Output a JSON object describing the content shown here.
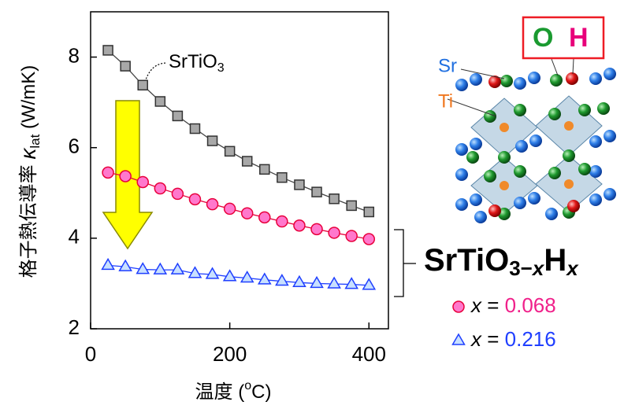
{
  "chart_data": {
    "type": "line",
    "xlabel": [
      "温度 (",
      "o",
      "C)"
    ],
    "ylabel": [
      "格子熱伝導率 ",
      "κ",
      "lat",
      " (W/mK)"
    ],
    "xlim": [
      0,
      428
    ],
    "ylim": [
      2,
      9
    ],
    "xticks": [
      0,
      200,
      400
    ],
    "yticks": [
      2,
      4,
      6,
      8
    ],
    "x": [
      25,
      50,
      75,
      100,
      125,
      150,
      175,
      200,
      225,
      250,
      275,
      300,
      325,
      350,
      375,
      400
    ],
    "series": [
      {
        "name": [
          "SrTiO",
          "3"
        ],
        "marker": "s",
        "color": "#a8a8a8",
        "edgecolor": "#333333",
        "linecolor": "#444444",
        "values": [
          8.15,
          7.8,
          7.38,
          7.02,
          6.7,
          6.42,
          6.15,
          5.92,
          5.7,
          5.52,
          5.34,
          5.18,
          5.02,
          4.87,
          4.72,
          4.58
        ]
      },
      {
        "name": [
          "x",
          " = ",
          "0.068"
        ],
        "marker": "o",
        "color": "#ff78cc",
        "edgecolor": "#e8003c",
        "linecolor": "#e8003c",
        "values": [
          5.45,
          5.37,
          5.24,
          5.1,
          4.98,
          4.86,
          4.75,
          4.65,
          4.55,
          4.46,
          4.37,
          4.28,
          4.2,
          4.12,
          4.05,
          3.98
        ]
      },
      {
        "name": [
          "x",
          " = ",
          "0.216"
        ],
        "marker": "^",
        "color": "#c8e0ff",
        "edgecolor": "#1f3fff",
        "linecolor": "#1f3fff",
        "values": [
          3.4,
          3.37,
          3.31,
          3.3,
          3.3,
          3.22,
          3.2,
          3.15,
          3.12,
          3.08,
          3.05,
          3.02,
          3.0,
          2.99,
          2.98,
          2.96
        ]
      }
    ],
    "legend_title": [
      "SrTiO",
      "3−",
      "x",
      "H",
      "x"
    ],
    "structure_labels": {
      "sr": "Sr",
      "ti": "Ti",
      "o": "O",
      "h": "H"
    }
  }
}
